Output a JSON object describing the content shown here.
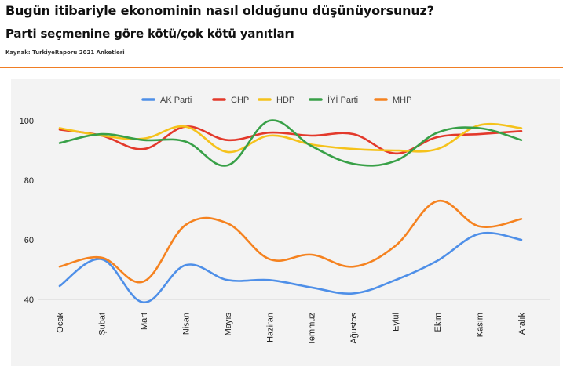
{
  "header": {
    "title": "Bugün itibariyle ekonominin nasıl olduğunu düşünüyorsunuz?",
    "subtitle": "Parti seçmenine göre kötü/çok kötü yanıtları",
    "source": "Kaynak: TurkiyeRaporu 2021 Anketleri"
  },
  "colors": {
    "accent_line": "#f07d24",
    "chart_bg": "#f3f3f3",
    "grid": "#cccccc"
  },
  "chart_data": {
    "type": "line",
    "title": "",
    "xlabel": "",
    "ylabel": "",
    "ylim": [
      35,
      105
    ],
    "yticks": [
      40,
      60,
      80,
      100
    ],
    "grid": "off",
    "legend_position": "top",
    "categories": [
      "Ocak",
      "Şubat",
      "Mart",
      "Nisan",
      "Mayıs",
      "Haziran",
      "Temmuz",
      "Ağustos",
      "Eylül",
      "Ekim",
      "Kasım",
      "Aralık"
    ],
    "series": [
      {
        "name": "AK Parti",
        "color": "#4e8fe8",
        "values": [
          44.5,
          53.5,
          39,
          51.5,
          46.5,
          46.5,
          44,
          42,
          46.5,
          53,
          62,
          60
        ]
      },
      {
        "name": "CHP",
        "color": "#e3392b",
        "values": [
          97,
          95,
          90.5,
          98,
          93.5,
          96,
          95,
          95.5,
          89,
          94.5,
          95.5,
          96.5
        ]
      },
      {
        "name": "HDP",
        "color": "#f5c21b",
        "values": [
          97.5,
          95,
          94,
          98,
          89.5,
          95,
          92,
          90.5,
          90,
          90.5,
          98.5,
          97.5
        ]
      },
      {
        "name": "İYİ Parti",
        "color": "#38a047",
        "values": [
          92.5,
          95.5,
          93.5,
          93,
          85,
          100,
          91.5,
          85.5,
          86.5,
          96,
          97.5,
          93.5
        ]
      },
      {
        "name": "MHP",
        "color": "#f5821f",
        "values": [
          51,
          54,
          46,
          65,
          65.5,
          53.5,
          55,
          51,
          58,
          73,
          64.5,
          67
        ]
      }
    ]
  }
}
